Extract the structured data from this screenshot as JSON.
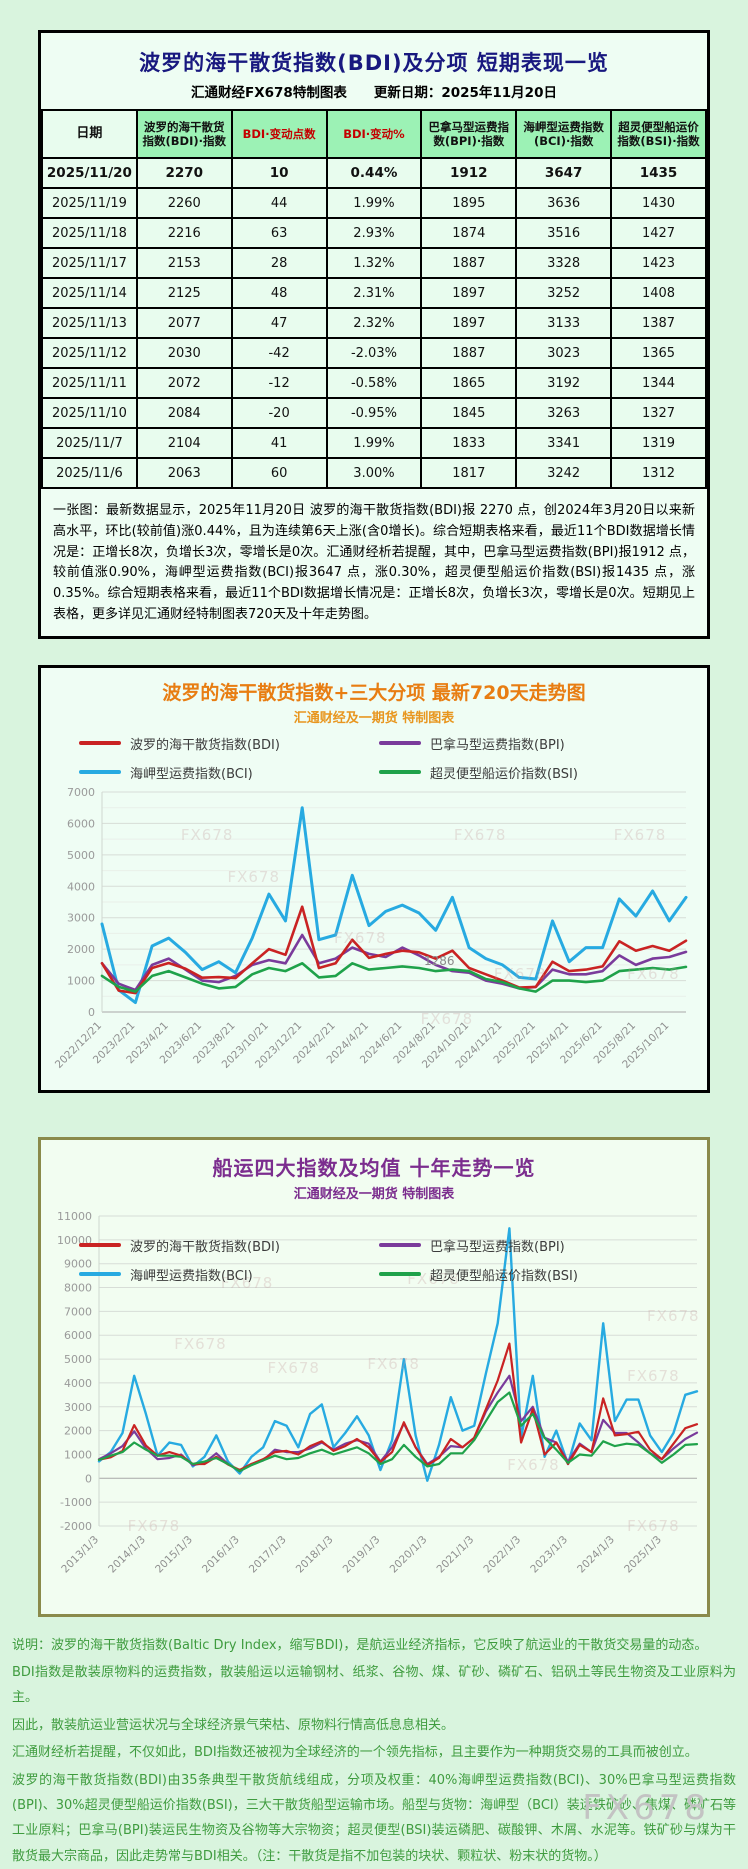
{
  "watermark": "FX678",
  "table_panel": {
    "title": "波罗的海干散货指数(BDI)及分项  短期表现一览",
    "subtitle": "汇通财经FX678特制图表　　更新日期：2025年11月20日",
    "columns": [
      "日期",
      "波罗的海干散货指数(BDI)·指数",
      "BDI·变动点数",
      "BDI·变动%",
      "巴拿马型运费指数(BPI)·指数",
      "海岬型运费指数(BCI)·指数",
      "超灵便型船运价指数(BSI)·指数"
    ],
    "rows": [
      [
        "2025/11/20",
        "2270",
        "10",
        "0.44%",
        "1912",
        "3647",
        "1435"
      ],
      [
        "2025/11/19",
        "2260",
        "44",
        "1.99%",
        "1895",
        "3636",
        "1430"
      ],
      [
        "2025/11/18",
        "2216",
        "63",
        "2.93%",
        "1874",
        "3516",
        "1427"
      ],
      [
        "2025/11/17",
        "2153",
        "28",
        "1.32%",
        "1887",
        "3328",
        "1423"
      ],
      [
        "2025/11/14",
        "2125",
        "48",
        "2.31%",
        "1897",
        "3252",
        "1408"
      ],
      [
        "2025/11/13",
        "2077",
        "47",
        "2.32%",
        "1897",
        "3133",
        "1387"
      ],
      [
        "2025/11/12",
        "2030",
        "-42",
        "-2.03%",
        "1887",
        "3023",
        "1365"
      ],
      [
        "2025/11/11",
        "2072",
        "-12",
        "-0.58%",
        "1865",
        "3192",
        "1344"
      ],
      [
        "2025/11/10",
        "2084",
        "-20",
        "-0.95%",
        "1845",
        "3263",
        "1327"
      ],
      [
        "2025/11/7",
        "2104",
        "41",
        "1.99%",
        "1833",
        "3341",
        "1319"
      ],
      [
        "2025/11/6",
        "2063",
        "60",
        "3.00%",
        "1817",
        "3242",
        "1312"
      ]
    ],
    "note": "一张图：最新数据显示，2025年11月20日 波罗的海干散货指数(BDI)报 2270 点，创2024年3月20日以来新高水平，环比(较前值)涨0.44%，且为连续第6天上涨(含0增长)。综合短期表格来看，最近11个BDI数据增长情况是：正增长8次，负增长3次，零增长是0次。汇通财经析若提醒，其中，巴拿马型运费指数(BPI)报1912 点，较前值涨0.90%，海岬型运费指数(BCI)报3647 点，涨0.30%，超灵便型船运价指数(BSI)报1435 点，涨0.35%。综合短期表格来看，最近11个BDI数据增长情况是：正增长8次，负增长3次，零增长是0次。短期见上表格，更多详见汇通财经特制图表720天及十年走势图。"
  },
  "chart_data": [
    {
      "type": "line",
      "title": "波罗的海干散货指数+三大分项  最新720天走势图",
      "subtitle": "汇通财经及一期货  特制图表",
      "ylim": [
        0,
        7000
      ],
      "y_step": 1000,
      "y_minor_step": 500,
      "x_tick_step": 2,
      "x_tick_labels": [
        "2022/12/21",
        "2023/2/21",
        "2023/4/21",
        "2023/6/21",
        "2023/8/21",
        "2023/10/21",
        "2023/12/21",
        "2024/2/21",
        "2024/4/21",
        "2024/6/21",
        "2024/8/21",
        "2024/10/21",
        "2024/12/21",
        "2025/2/21",
        "2025/4/21",
        "2025/6/21",
        "2025/8/21",
        "2025/10/21"
      ],
      "annotation": {
        "text": "1286",
        "x_index": 19.3,
        "y": 1500
      },
      "legend_position": "top",
      "grid": true,
      "series": [
        {
          "name": "波罗的海干散货指数(BDI)",
          "short": "bdi",
          "color": "#c92323",
          "width": 2.6,
          "values": [
            1550,
            680,
            600,
            1400,
            1560,
            1380,
            1090,
            1110,
            1080,
            1550,
            2000,
            1820,
            3350,
            1400,
            1550,
            2300,
            1720,
            1850,
            1950,
            1900,
            1700,
            1950,
            1400,
            1200,
            1000,
            780,
            800,
            1600,
            1300,
            1350,
            1450,
            2250,
            1950,
            2100,
            1950,
            2270
          ]
        },
        {
          "name": "巴拿马型运费指数(BPI)",
          "short": "bpi",
          "color": "#7a3b9b",
          "width": 2.6,
          "values": [
            1550,
            900,
            700,
            1500,
            1700,
            1350,
            1000,
            950,
            1150,
            1500,
            1650,
            1550,
            2450,
            1550,
            1700,
            2050,
            1850,
            1750,
            2050,
            1800,
            1500,
            1300,
            1250,
            1000,
            900,
            750,
            800,
            1350,
            1200,
            1200,
            1300,
            1800,
            1500,
            1700,
            1750,
            1912
          ]
        },
        {
          "name": "海岬型运费指数(BCI)",
          "short": "bci",
          "color": "#27aae1",
          "width": 3,
          "values": [
            2800,
            700,
            300,
            2100,
            2350,
            1900,
            1350,
            1600,
            1250,
            2350,
            3750,
            2900,
            6500,
            2300,
            2450,
            4350,
            2750,
            3200,
            3400,
            3150,
            2600,
            3650,
            2050,
            1700,
            1500,
            1100,
            1050,
            2900,
            1600,
            2050,
            2050,
            3600,
            3050,
            3850,
            2900,
            3647
          ]
        },
        {
          "name": "超灵便型船运价指数(BSI)",
          "short": "bsi",
          "color": "#1fa24a",
          "width": 2.6,
          "values": [
            1150,
            800,
            650,
            1150,
            1300,
            1100,
            900,
            750,
            800,
            1200,
            1400,
            1300,
            1550,
            1100,
            1150,
            1550,
            1350,
            1400,
            1450,
            1400,
            1300,
            1350,
            1300,
            1050,
            950,
            750,
            650,
            1000,
            1000,
            950,
            1000,
            1300,
            1350,
            1400,
            1350,
            1435
          ]
        }
      ]
    },
    {
      "type": "line",
      "title": "船运四大指数及均值 十年走势一览",
      "subtitle": "汇通财经及一期货 特制图表",
      "ylim": [
        -2000,
        11000
      ],
      "y_step": 1000,
      "x_tick_step": 4,
      "x_tick_labels": [
        "2013/1/3",
        "2014/1/3",
        "2015/1/3",
        "2016/1/3",
        "2017/1/3",
        "2018/1/3",
        "2019/1/3",
        "2020/1/3",
        "2021/1/3",
        "2022/1/3",
        "2023/1/3",
        "2024/1/3",
        "2025/1/3"
      ],
      "legend_position": "top-overlay",
      "grid": true,
      "series": [
        {
          "name": "波罗的海干散货指数(BDI)",
          "short": "bdi",
          "color": "#c92323",
          "width": 2.2,
          "values": [
            780,
            880,
            1150,
            2230,
            1370,
            950,
            1100,
            950,
            600,
            600,
            900,
            580,
            350,
            600,
            800,
            1100,
            1150,
            1000,
            1350,
            1550,
            1150,
            1350,
            1650,
            1300,
            680,
            1100,
            2350,
            1300,
            550,
            850,
            1650,
            1300,
            1700,
            2900,
            4100,
            5650,
            1500,
            2900,
            1000,
            1500,
            600,
            1400,
            1100,
            3350,
            1800,
            1850,
            1950,
            1200,
            800,
            1450,
            2100,
            2270
          ]
        },
        {
          "name": "巴拿马型运费指数(BPI)",
          "short": "bpi",
          "color": "#7a3b9b",
          "width": 2.2,
          "values": [
            800,
            1050,
            1350,
            1970,
            1250,
            800,
            850,
            1000,
            550,
            650,
            1050,
            600,
            300,
            600,
            750,
            1200,
            1100,
            1100,
            1250,
            1500,
            1200,
            1450,
            1600,
            1450,
            700,
            1300,
            2300,
            1300,
            600,
            900,
            1350,
            1300,
            1700,
            2800,
            3600,
            4300,
            2400,
            3000,
            1700,
            1500,
            700,
            1450,
            1100,
            2450,
            1900,
            1900,
            1500,
            1050,
            800,
            1250,
            1650,
            1912
          ]
        },
        {
          "name": "海岬型运费指数(BCI)",
          "short": "bci",
          "color": "#27aae1",
          "width": 2.4,
          "values": [
            710,
            1100,
            1900,
            4300,
            2700,
            950,
            1500,
            1400,
            500,
            900,
            1800,
            700,
            200,
            900,
            1300,
            2400,
            2200,
            1300,
            2700,
            3100,
            1300,
            1900,
            2600,
            1800,
            350,
            1600,
            5000,
            1800,
            -100,
            1400,
            3400,
            2000,
            2200,
            4400,
            6500,
            10485,
            1700,
            4300,
            900,
            2000,
            600,
            2300,
            1600,
            6500,
            2400,
            3300,
            3300,
            1800,
            1100,
            1900,
            3500,
            3647
          ]
        },
        {
          "name": "超灵便型船运价指数(BSI)",
          "short": "bsi",
          "color": "#1fa24a",
          "width": 2.2,
          "values": [
            770,
            950,
            1100,
            1500,
            1200,
            950,
            950,
            900,
            600,
            700,
            850,
            600,
            300,
            550,
            750,
            950,
            800,
            850,
            1050,
            1200,
            1000,
            1150,
            1300,
            1050,
            600,
            800,
            1400,
            900,
            500,
            600,
            1050,
            1050,
            1600,
            2400,
            3200,
            3600,
            2200,
            2700,
            1700,
            1200,
            650,
            1000,
            950,
            1550,
            1350,
            1450,
            1400,
            1050,
            650,
            1000,
            1400,
            1435
          ]
        }
      ]
    }
  ],
  "footer": {
    "lines": [
      "说明：波罗的海干散货指数(Baltic Dry Index，缩写BDI)，是航运业经济指标，它反映了航运业的干散货交易量的动态。",
      "BDI指数是散装原物料的运费指数，散装船运以运输钢材、纸浆、谷物、煤、矿砂、磷矿石、铝矾土等民生物资及工业原料为主。",
      "因此，散装航运业营运状况与全球经济景气荣枯、原物料行情高低息息相关。",
      "汇通财经析若提醒，不仅如此，BDI指数还被视为全球经济的一个领先指标，且主要作为一种期货交易的工具而被创立。",
      "波罗的海干散货指数(BDI)由35条典型干散货航线组成，分项及权重：40%海岬型运费指数(BCI)、30%巴拿马型运费指数(BPI)、30%超灵便型船运价指数(BSI)，三大干散货船型运输市场。船型与货物：海岬型（BCI）装运铁矿砂、焦煤、磷矿石等工业原料；巴拿马(BPI)装运民生物资及谷物等大宗物资；超灵便型(BSI)装运磷肥、碳酸钾、木屑、水泥等。铁矿砂与煤为干散货最大宗商品，因此走势常与BDI相关。（注：干散货是指不加包装的块状、颗粒状、粉末状的货物。）"
    ]
  }
}
